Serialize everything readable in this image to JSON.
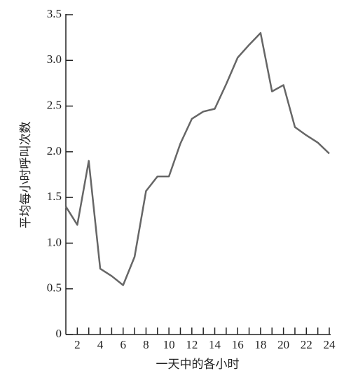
{
  "chart_data": {
    "type": "line",
    "xlabel": "一天中的各小时",
    "ylabel": "平均每小时呼叫次数",
    "x": [
      1,
      2,
      3,
      4,
      5,
      6,
      7,
      8,
      9,
      10,
      11,
      12,
      13,
      14,
      15,
      16,
      17,
      18,
      19,
      20,
      21,
      22,
      23,
      24
    ],
    "values": [
      1.4,
      1.2,
      1.9,
      0.72,
      0.64,
      0.54,
      0.85,
      1.57,
      1.73,
      1.73,
      2.09,
      2.36,
      2.44,
      2.47,
      2.74,
      3.03,
      3.17,
      3.3,
      2.66,
      2.73,
      2.27,
      2.18,
      2.1,
      1.98
    ],
    "color": "#666666",
    "xlim": [
      1,
      24
    ],
    "xticks": [
      2,
      4,
      6,
      8,
      10,
      12,
      14,
      16,
      18,
      20,
      22,
      24
    ],
    "xminorticks": [
      3,
      5,
      7,
      9,
      11,
      13,
      15,
      17,
      19,
      21,
      23
    ],
    "ylim": [
      0,
      3.5
    ],
    "yticks": [
      0,
      0.5,
      {
        "value": 1,
        "label": "1.0"
      },
      1.5,
      {
        "value": 2,
        "label": "2.0"
      },
      2.5,
      {
        "value": 3,
        "label": "3.0"
      },
      3.5
    ],
    "grid": false
  }
}
